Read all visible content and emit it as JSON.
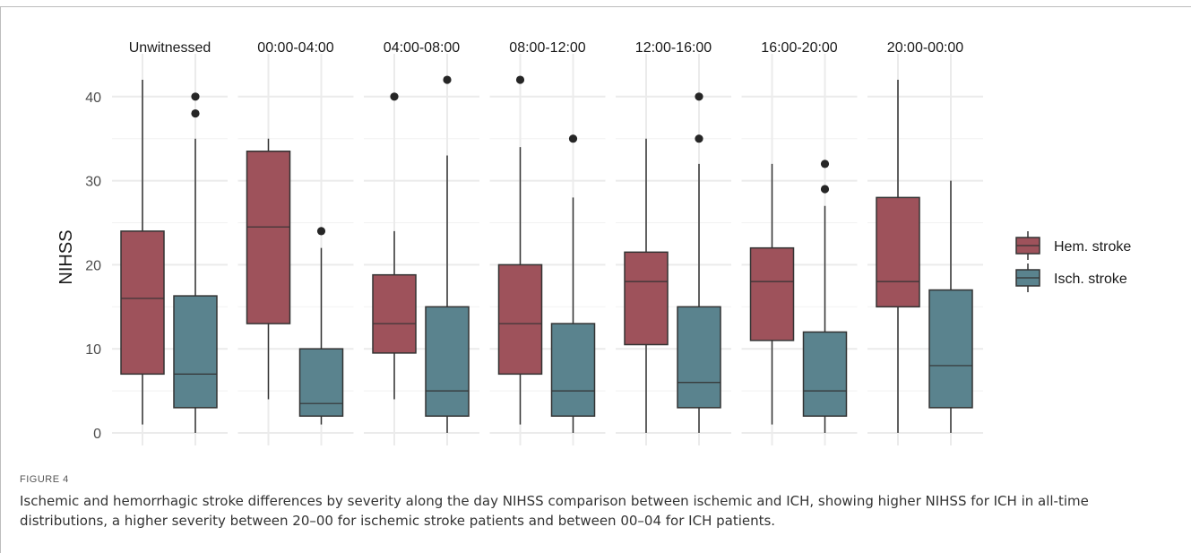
{
  "figure": {
    "label": "FIGURE 4",
    "caption": "Ischemic and hemorrhagic stroke differences by severity along the day NIHSS comparison between ischemic and ICH, showing higher NIHSS for ICH in all-time distributions, a higher severity between 20–00 for ischemic stroke patients and between 00–04 for ICH patients."
  },
  "chart_data": {
    "type": "boxplot",
    "ylabel": "NIHSS",
    "ylim": [
      -1,
      44
    ],
    "yticks": [
      0,
      10,
      20,
      30,
      40
    ],
    "grid": true,
    "legend_position": "right",
    "colors": {
      "Hem. stroke": "#9e525b",
      "Isch. stroke": "#5a838e"
    },
    "panels": [
      {
        "label": "Unwitnessed",
        "boxes": [
          {
            "group": "Hem. stroke",
            "min": 1,
            "q1": 7,
            "median": 16,
            "q3": 24,
            "max": 42,
            "outliers": []
          },
          {
            "group": "Isch. stroke",
            "min": 0,
            "q1": 3,
            "median": 7,
            "q3": 16.3,
            "max": 35,
            "outliers": [
              38,
              40
            ]
          }
        ]
      },
      {
        "label": "00:00-04:00",
        "boxes": [
          {
            "group": "Hem. stroke",
            "min": 4,
            "q1": 13,
            "median": 24.5,
            "q3": 33.5,
            "max": 35,
            "outliers": []
          },
          {
            "group": "Isch. stroke",
            "min": 1,
            "q1": 2,
            "median": 3.5,
            "q3": 10,
            "max": 22,
            "outliers": [
              24
            ]
          }
        ]
      },
      {
        "label": "04:00-08:00",
        "boxes": [
          {
            "group": "Hem. stroke",
            "min": 4,
            "q1": 9.5,
            "median": 13,
            "q3": 18.8,
            "max": 24,
            "outliers": [
              40
            ]
          },
          {
            "group": "Isch. stroke",
            "min": 0,
            "q1": 2,
            "median": 5,
            "q3": 15,
            "max": 33,
            "outliers": [
              42
            ]
          }
        ]
      },
      {
        "label": "08:00-12:00",
        "boxes": [
          {
            "group": "Hem. stroke",
            "min": 1,
            "q1": 7,
            "median": 13,
            "q3": 20,
            "max": 34,
            "outliers": [
              42
            ]
          },
          {
            "group": "Isch. stroke",
            "min": 0,
            "q1": 2,
            "median": 5,
            "q3": 13,
            "max": 28,
            "outliers": [
              35
            ]
          }
        ]
      },
      {
        "label": "12:00-16:00",
        "boxes": [
          {
            "group": "Hem. stroke",
            "min": 0,
            "q1": 10.5,
            "median": 18,
            "q3": 21.5,
            "max": 35,
            "outliers": []
          },
          {
            "group": "Isch. stroke",
            "min": 0,
            "q1": 3,
            "median": 6,
            "q3": 15,
            "max": 32,
            "outliers": [
              35,
              40
            ]
          }
        ]
      },
      {
        "label": "16:00-20:00",
        "boxes": [
          {
            "group": "Hem. stroke",
            "min": 1,
            "q1": 11,
            "median": 18,
            "q3": 22,
            "max": 32,
            "outliers": []
          },
          {
            "group": "Isch. stroke",
            "min": 0,
            "q1": 2,
            "median": 5,
            "q3": 12,
            "max": 27,
            "outliers": [
              29,
              32
            ]
          }
        ]
      },
      {
        "label": "20:00-00:00",
        "boxes": [
          {
            "group": "Hem. stroke",
            "min": 0,
            "q1": 15,
            "median": 18,
            "q3": 28,
            "max": 42,
            "outliers": []
          },
          {
            "group": "Isch. stroke",
            "min": 0,
            "q1": 3,
            "median": 8,
            "q3": 17,
            "max": 30,
            "outliers": []
          }
        ]
      }
    ],
    "legend": [
      "Hem. stroke",
      "Isch. stroke"
    ]
  }
}
